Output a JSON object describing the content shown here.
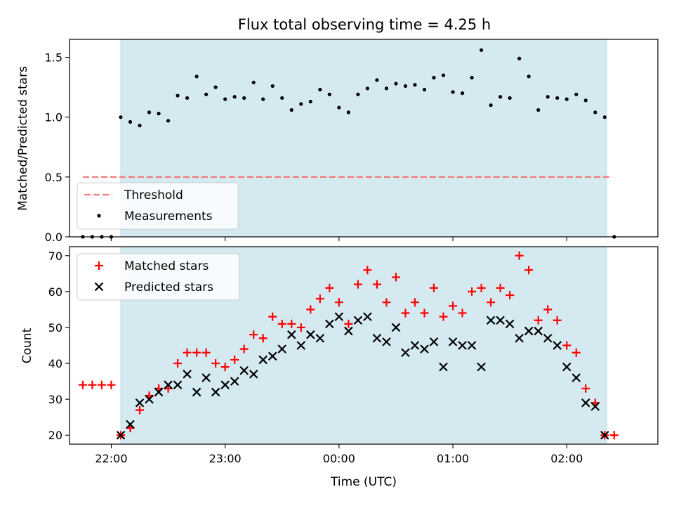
{
  "title": "Flux total observing time = 4.25 h",
  "colors": {
    "shade": "#d4eaf0",
    "threshold": "#f47a7a",
    "measurement": "#000000",
    "matched": "#ff0000",
    "predicted": "#000000"
  },
  "chart_data": [
    {
      "type": "scatter",
      "ylabel": "Matched/Predicted stars",
      "xlim": [
        "21:38",
        "02:48"
      ],
      "ylim": [
        0,
        1.65
      ],
      "yticks": [
        "0.0",
        "0.5",
        "1.0",
        "1.5"
      ],
      "x_ticks": [
        "22:00",
        "23:00",
        "00:00",
        "01:00",
        "02:00"
      ],
      "observing_window": [
        "22:05",
        "02:21"
      ],
      "legend": {
        "placement": "lower-left",
        "entries": [
          "Threshold",
          "Measurements"
        ]
      },
      "threshold": {
        "name": "Threshold",
        "value": 0.5,
        "x_range": [
          "21:45",
          "02:24"
        ]
      },
      "series": [
        {
          "name": "Measurements",
          "x": [
            "21:45",
            "21:50",
            "21:55",
            "22:00",
            "22:05",
            "22:10",
            "22:15",
            "22:20",
            "22:25",
            "22:30",
            "22:35",
            "22:40",
            "22:45",
            "22:50",
            "22:55",
            "23:00",
            "23:05",
            "23:10",
            "23:15",
            "23:20",
            "23:25",
            "23:30",
            "23:35",
            "23:40",
            "23:45",
            "23:50",
            "23:55",
            "00:00",
            "00:05",
            "00:10",
            "00:15",
            "00:20",
            "00:25",
            "00:30",
            "00:35",
            "00:40",
            "00:45",
            "00:50",
            "00:55",
            "01:00",
            "01:05",
            "01:10",
            "01:15",
            "01:20",
            "01:25",
            "01:30",
            "01:35",
            "01:40",
            "01:45",
            "01:50",
            "01:55",
            "02:00",
            "02:05",
            "02:10",
            "02:15",
            "02:20",
            "02:25"
          ],
          "values": [
            0,
            0,
            0,
            0,
            1.0,
            0.96,
            0.93,
            1.04,
            1.03,
            0.97,
            1.18,
            1.16,
            1.34,
            1.19,
            1.25,
            1.15,
            1.17,
            1.16,
            1.29,
            1.15,
            1.26,
            1.16,
            1.06,
            1.11,
            1.13,
            1.23,
            1.19,
            1.08,
            1.04,
            1.19,
            1.24,
            1.31,
            1.24,
            1.28,
            1.26,
            1.27,
            1.23,
            1.33,
            1.35,
            1.21,
            1.2,
            1.33,
            1.56,
            1.1,
            1.17,
            1.16,
            1.49,
            1.34,
            1.06,
            1.17,
            1.16,
            1.15,
            1.19,
            1.14,
            1.04,
            1.0,
            0
          ]
        }
      ]
    },
    {
      "type": "scatter",
      "ylabel": "Count",
      "xlabel": "Time (UTC)",
      "xlim": [
        "21:38",
        "02:48"
      ],
      "ylim": [
        17.5,
        72.5
      ],
      "yticks": [
        "20",
        "30",
        "40",
        "50",
        "60",
        "70"
      ],
      "x_ticks": [
        "22:00",
        "23:00",
        "00:00",
        "01:00",
        "02:00"
      ],
      "observing_window": [
        "22:05",
        "02:21"
      ],
      "legend": {
        "placement": "upper-left",
        "entries": [
          "Matched stars",
          "Predicted stars"
        ]
      },
      "series": [
        {
          "name": "Matched stars",
          "marker": "plus",
          "x": [
            "21:45",
            "21:50",
            "21:55",
            "22:00",
            "22:05",
            "22:10",
            "22:15",
            "22:20",
            "22:25",
            "22:30",
            "22:35",
            "22:40",
            "22:45",
            "22:50",
            "22:55",
            "23:00",
            "23:05",
            "23:10",
            "23:15",
            "23:20",
            "23:25",
            "23:30",
            "23:35",
            "23:40",
            "23:45",
            "23:50",
            "23:55",
            "00:00",
            "00:05",
            "00:10",
            "00:15",
            "00:20",
            "00:25",
            "00:30",
            "00:35",
            "00:40",
            "00:45",
            "00:50",
            "00:55",
            "01:00",
            "01:05",
            "01:10",
            "01:15",
            "01:20",
            "01:25",
            "01:30",
            "01:35",
            "01:40",
            "01:45",
            "01:50",
            "01:55",
            "02:00",
            "02:05",
            "02:10",
            "02:15",
            "02:20",
            "02:25"
          ],
          "values": [
            34,
            34,
            34,
            34,
            20,
            22,
            27,
            31,
            33,
            33,
            40,
            43,
            43,
            43,
            40,
            39,
            41,
            44,
            48,
            47,
            53,
            51,
            51,
            50,
            55,
            58,
            61,
            57,
            51,
            62,
            66,
            62,
            57,
            64,
            54,
            57,
            54,
            61,
            53,
            56,
            54,
            60,
            61,
            57,
            61,
            59,
            70,
            66,
            52,
            55,
            52,
            45,
            43,
            33,
            29,
            20,
            20
          ]
        },
        {
          "name": "Predicted stars",
          "marker": "x",
          "x": [
            "22:05",
            "22:10",
            "22:15",
            "22:20",
            "22:25",
            "22:30",
            "22:35",
            "22:40",
            "22:45",
            "22:50",
            "22:55",
            "23:00",
            "23:05",
            "23:10",
            "23:15",
            "23:20",
            "23:25",
            "23:30",
            "23:35",
            "23:40",
            "23:45",
            "23:50",
            "23:55",
            "00:00",
            "00:05",
            "00:10",
            "00:15",
            "00:20",
            "00:25",
            "00:30",
            "00:35",
            "00:40",
            "00:45",
            "00:50",
            "00:55",
            "01:00",
            "01:05",
            "01:10",
            "01:15",
            "01:20",
            "01:25",
            "01:30",
            "01:35",
            "01:40",
            "01:45",
            "01:50",
            "01:55",
            "02:00",
            "02:05",
            "02:10",
            "02:15",
            "02:20"
          ],
          "values": [
            20,
            23,
            29,
            30,
            32,
            34,
            34,
            37,
            32,
            36,
            32,
            34,
            35,
            38,
            37,
            41,
            42,
            44,
            48,
            45,
            48,
            47,
            51,
            53,
            49,
            52,
            53,
            47,
            46,
            50,
            43,
            45,
            44,
            46,
            39,
            46,
            45,
            45,
            39,
            52,
            52,
            51,
            47,
            49,
            49,
            47,
            45,
            39,
            36,
            29,
            28,
            20
          ]
        }
      ]
    }
  ]
}
